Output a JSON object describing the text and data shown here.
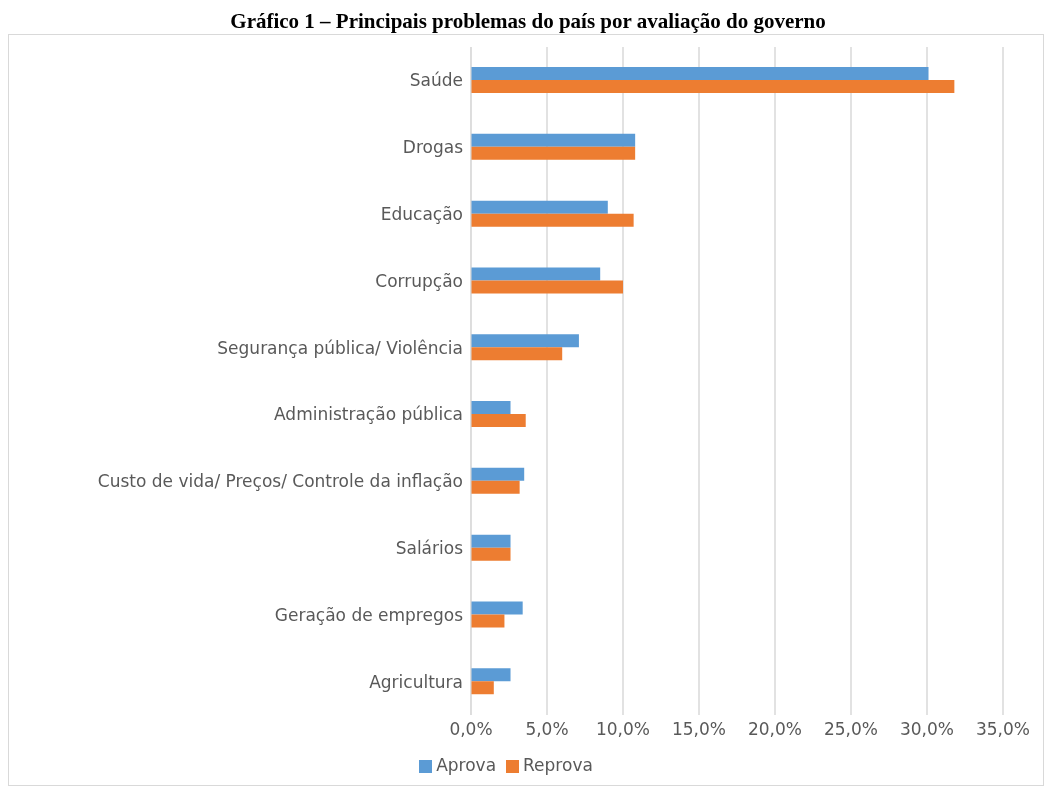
{
  "chart_data": {
    "type": "bar",
    "orientation": "horizontal",
    "title": "Gráfico 1 – Principais problemas do país por avaliação do governo",
    "categories": [
      "Saúde",
      "Drogas",
      "Educação",
      "Corrupção",
      "Segurança pública/ Violência",
      "Administração pública",
      "Custo de vida/ Preços/ Controle da inflação",
      "Salários",
      "Geração de empregos",
      "Agricultura"
    ],
    "series": [
      {
        "name": "Aprova",
        "color": "#5b9bd5",
        "values": [
          30.1,
          10.8,
          9.0,
          8.5,
          7.1,
          2.6,
          3.5,
          2.6,
          3.4,
          2.6
        ]
      },
      {
        "name": "Reprova",
        "color": "#ed7d31",
        "values": [
          31.8,
          10.8,
          10.7,
          10.0,
          6.0,
          3.6,
          3.2,
          2.6,
          2.2,
          1.5
        ]
      }
    ],
    "xlim": [
      0,
      35
    ],
    "xticks": [
      {
        "value": 0,
        "label": "0,0%"
      },
      {
        "value": 5,
        "label": "5,0%"
      },
      {
        "value": 10,
        "label": "10,0%"
      },
      {
        "value": 15,
        "label": "15,0%"
      },
      {
        "value": 20,
        "label": "20,0%"
      },
      {
        "value": 25,
        "label": "25,0%"
      },
      {
        "value": 30,
        "label": "30,0%"
      },
      {
        "value": 35,
        "label": "35,0%"
      }
    ],
    "grid": "x",
    "legend": "bottom"
  }
}
